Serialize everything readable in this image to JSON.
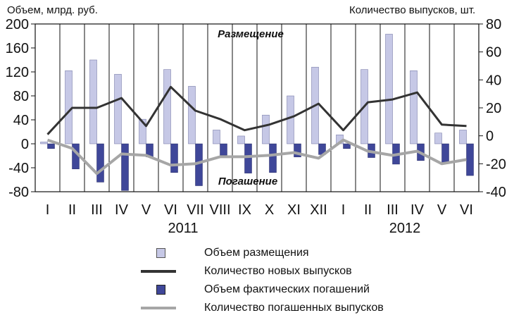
{
  "chart_data": {
    "type": "bar",
    "left_axis_label": "Объем, млрд. руб.",
    "right_axis_label": "Количество выпусков, шт.",
    "annotations": {
      "top": "Размещение",
      "bottom": "Погашение"
    },
    "categories": [
      "I",
      "II",
      "III",
      "IV",
      "V",
      "VI",
      "VII",
      "VIII",
      "IX",
      "X",
      "XI",
      "XII",
      "I",
      "II",
      "III",
      "IV",
      "V",
      "VI"
    ],
    "year_labels": [
      {
        "label": "2011"
      },
      {
        "label": "2012"
      }
    ],
    "y_left": {
      "ylim": [
        -80,
        200
      ],
      "ticks": [
        -80,
        -40,
        0,
        40,
        80,
        120,
        160,
        200
      ]
    },
    "y_right": {
      "ylim": [
        -40,
        80
      ],
      "ticks": [
        -40,
        -20,
        0,
        20,
        40,
        60,
        80
      ]
    },
    "grid": "vertical",
    "series": [
      {
        "name": "Объем размещения",
        "kind": "bar",
        "axis": "left",
        "values": [
          3,
          122,
          140,
          116,
          41,
          124,
          96,
          23,
          13,
          48,
          80,
          128,
          15,
          124,
          183,
          122,
          18,
          23
        ]
      },
      {
        "name": "Объем фактических погашений",
        "kind": "bar",
        "axis": "left",
        "values": [
          -8,
          -42,
          -64,
          -78,
          -22,
          -48,
          -70,
          -19,
          -49,
          -48,
          -22,
          -18,
          -8,
          -23,
          -34,
          -28,
          -32,
          -53
        ]
      },
      {
        "name": "Количество новых выпусков",
        "kind": "line",
        "axis": "right",
        "values": [
          1,
          20,
          20,
          27,
          7,
          35,
          18,
          12,
          4,
          8,
          14,
          23,
          4,
          24,
          26,
          31,
          8,
          7
        ]
      },
      {
        "name": "Количество погашенных выпусков",
        "kind": "line",
        "axis": "right",
        "values": [
          -3,
          -9,
          -27,
          -13,
          -14,
          -21,
          -20,
          -15,
          -15,
          -14,
          -12,
          -16,
          -3,
          -11,
          -14,
          -11,
          -20,
          -17
        ]
      }
    ],
    "colors": {
      "placement_bar": "#c6c8e6",
      "redemption_bar": "#3f4799",
      "new_line": "#333333",
      "redeemed_line": "#a6a6a6"
    }
  }
}
